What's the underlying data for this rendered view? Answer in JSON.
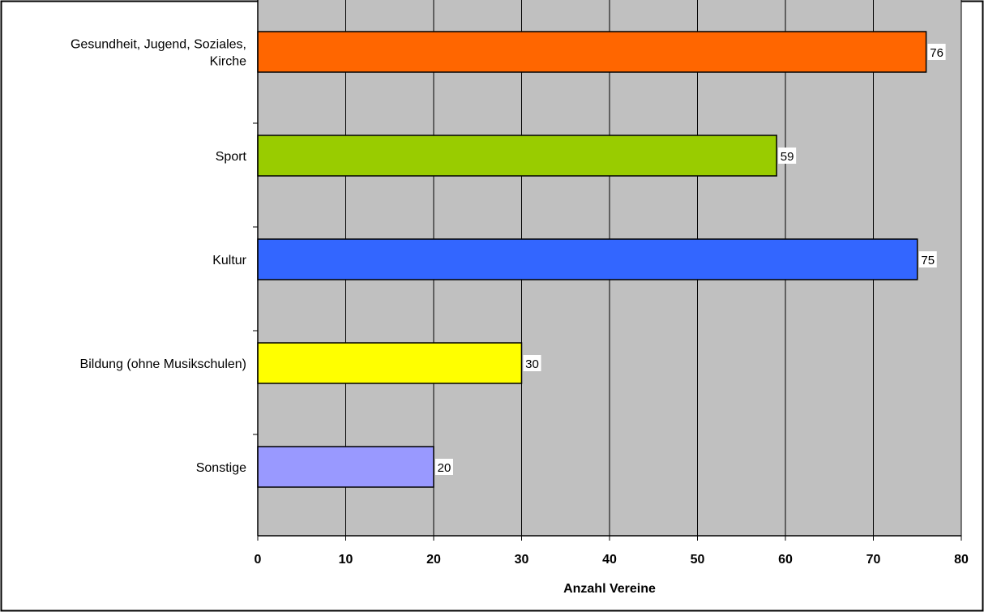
{
  "chart_data": {
    "type": "bar",
    "orientation": "horizontal",
    "title": "",
    "xlabel": "Anzahl Vereine",
    "ylabel": "",
    "xlim": [
      0,
      80
    ],
    "xticks": [
      0,
      10,
      20,
      30,
      40,
      50,
      60,
      70,
      80
    ],
    "grid": true,
    "legend": "none",
    "categories": [
      [
        "Gesundheit, Jugend, Soziales,",
        "Kirche"
      ],
      [
        "Sport"
      ],
      [
        "Kultur"
      ],
      [
        "Bildung (ohne Musikschulen)"
      ],
      [
        "Sonstige"
      ]
    ],
    "values": [
      76,
      59,
      75,
      30,
      20
    ],
    "data_labels": [
      "76",
      "59",
      "75",
      "30",
      "20"
    ],
    "colors": {
      "bars": [
        "#FF6600",
        "#99CC00",
        "#3366FF",
        "#FFFF00",
        "#9999FF"
      ],
      "plot_background": "#C0C0C0",
      "grid": "#000000",
      "frame": "#000000"
    }
  }
}
